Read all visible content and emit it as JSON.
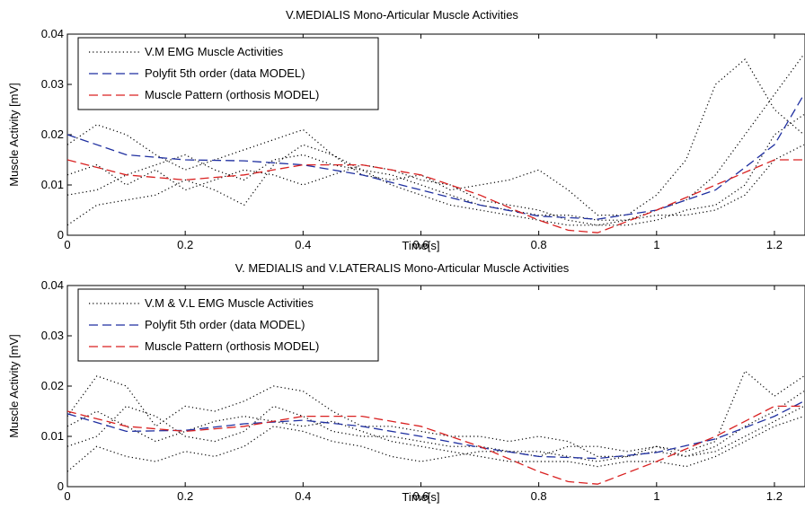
{
  "chart_data": [
    {
      "type": "line",
      "title": "V.MEDIALIS Mono-Articular Muscle Activities",
      "xlabel": "Time[s]",
      "ylabel": "Muscle Activity [mV]",
      "xlim": [
        0,
        1.25
      ],
      "ylim": [
        0,
        0.04
      ],
      "xticks": [
        "0",
        "0.2",
        "0.4",
        "0.6",
        "0.8",
        "1",
        "1.2"
      ],
      "yticks": [
        "0",
        "0.01",
        "0.02",
        "0.03",
        "0.04"
      ],
      "legend_position": "top-left",
      "legend": [
        "V.M EMG Muscle Activities",
        "Polyfit 5th order (data MODEL)",
        "Muscle Pattern (orthosis MODEL)"
      ],
      "series": [
        {
          "name": "V.M EMG Muscle Activities",
          "color": "#000000",
          "style": "dotted",
          "x": [
            0,
            0.05,
            0.1,
            0.15,
            0.2,
            0.25,
            0.3,
            0.35,
            0.4,
            0.45,
            0.5,
            0.55,
            0.6,
            0.65,
            0.7,
            0.75,
            0.8,
            0.85,
            0.9,
            0.95,
            1.0,
            1.05,
            1.1,
            1.15,
            1.2,
            1.25
          ],
          "y": [
            0.002,
            0.006,
            0.007,
            0.008,
            0.011,
            0.009,
            0.006,
            0.014,
            0.018,
            0.016,
            0.013,
            0.01,
            0.008,
            0.006,
            0.005,
            0.004,
            0.003,
            0.002,
            0.002,
            0.003,
            0.005,
            0.007,
            0.012,
            0.02,
            0.028,
            0.036
          ]
        },
        {
          "name": "V.M EMG Muscle Activities",
          "color": "#000000",
          "style": "dotted",
          "x": [
            0,
            0.05,
            0.1,
            0.15,
            0.2,
            0.25,
            0.3,
            0.35,
            0.4,
            0.45,
            0.5,
            0.55,
            0.6,
            0.65,
            0.7,
            0.75,
            0.8,
            0.85,
            0.9,
            0.95,
            1.0,
            1.05,
            1.1,
            1.15,
            1.2,
            1.25
          ],
          "y": [
            0.018,
            0.022,
            0.02,
            0.016,
            0.013,
            0.015,
            0.017,
            0.019,
            0.021,
            0.016,
            0.012,
            0.011,
            0.012,
            0.009,
            0.01,
            0.011,
            0.013,
            0.009,
            0.004,
            0.004,
            0.008,
            0.015,
            0.03,
            0.035,
            0.025,
            0.02
          ]
        },
        {
          "name": "V.M EMG Muscle Activities",
          "color": "#000000",
          "style": "dotted",
          "x": [
            0,
            0.05,
            0.1,
            0.15,
            0.2,
            0.25,
            0.3,
            0.35,
            0.4,
            0.45,
            0.5,
            0.55,
            0.6,
            0.65,
            0.7,
            0.75,
            0.8,
            0.85,
            0.9,
            0.95,
            1.0,
            1.05,
            1.1,
            1.15,
            1.2,
            1.25
          ],
          "y": [
            0.012,
            0.014,
            0.01,
            0.013,
            0.009,
            0.011,
            0.013,
            0.012,
            0.01,
            0.012,
            0.014,
            0.013,
            0.011,
            0.01,
            0.007,
            0.006,
            0.005,
            0.003,
            0.002,
            0.002,
            0.003,
            0.005,
            0.006,
            0.01,
            0.02,
            0.024
          ]
        },
        {
          "name": "V.M EMG Muscle Activities",
          "color": "#000000",
          "style": "dotted",
          "x": [
            0,
            0.05,
            0.1,
            0.15,
            0.2,
            0.25,
            0.3,
            0.35,
            0.4,
            0.45,
            0.5,
            0.55,
            0.6,
            0.65,
            0.7,
            0.75,
            0.8,
            0.85,
            0.9,
            0.95,
            1.0,
            1.05,
            1.1,
            1.15,
            1.2,
            1.25
          ],
          "y": [
            0.008,
            0.009,
            0.012,
            0.014,
            0.016,
            0.013,
            0.011,
            0.015,
            0.016,
            0.014,
            0.013,
            0.012,
            0.01,
            0.008,
            0.006,
            0.005,
            0.004,
            0.004,
            0.003,
            0.003,
            0.004,
            0.004,
            0.005,
            0.008,
            0.015,
            0.018
          ]
        },
        {
          "name": "Polyfit 5th order (data MODEL)",
          "color": "#1f2fa0",
          "style": "dashed",
          "x": [
            0,
            0.1,
            0.2,
            0.3,
            0.4,
            0.5,
            0.6,
            0.7,
            0.8,
            0.9,
            1.0,
            1.1,
            1.2,
            1.25
          ],
          "y": [
            0.02,
            0.016,
            0.015,
            0.0148,
            0.014,
            0.012,
            0.009,
            0.006,
            0.0038,
            0.0032,
            0.005,
            0.009,
            0.018,
            0.028
          ]
        },
        {
          "name": "Muscle Pattern (orthosis MODEL)",
          "color": "#d92020",
          "style": "dashed",
          "x": [
            0,
            0.1,
            0.2,
            0.3,
            0.4,
            0.5,
            0.6,
            0.7,
            0.8,
            0.85,
            0.9,
            1.0,
            1.1,
            1.2,
            1.25
          ],
          "y": [
            0.015,
            0.012,
            0.011,
            0.012,
            0.014,
            0.014,
            0.012,
            0.008,
            0.003,
            0.001,
            0.0005,
            0.005,
            0.01,
            0.015,
            0.015
          ]
        }
      ]
    },
    {
      "type": "line",
      "title": "V. MEDIALIS and V.LATERALIS Mono-Articular Muscle Activities",
      "xlabel": "Time[s]",
      "ylabel": "Muscle Activity [mV]",
      "xlim": [
        0,
        1.25
      ],
      "ylim": [
        0,
        0.04
      ],
      "xticks": [
        "0",
        "0.2",
        "0.4",
        "0.6",
        "0.8",
        "1",
        "1.2"
      ],
      "yticks": [
        "0",
        "0.01",
        "0.02",
        "0.03",
        "0.04"
      ],
      "legend_position": "top-left",
      "legend": [
        "V.M & V.L EMG Muscle Activities",
        "Polyfit 5th order (data MODEL)",
        "Muscle Pattern (orthosis MODEL)"
      ],
      "series": [
        {
          "name": "V.M & V.L EMG Muscle Activities",
          "color": "#000000",
          "style": "dotted",
          "x": [
            0,
            0.05,
            0.1,
            0.15,
            0.2,
            0.25,
            0.3,
            0.35,
            0.4,
            0.45,
            0.5,
            0.55,
            0.6,
            0.65,
            0.7,
            0.75,
            0.8,
            0.85,
            0.9,
            0.95,
            1.0,
            1.05,
            1.1,
            1.15,
            1.2,
            1.25
          ],
          "y": [
            0.003,
            0.008,
            0.006,
            0.005,
            0.007,
            0.006,
            0.008,
            0.012,
            0.011,
            0.009,
            0.008,
            0.006,
            0.005,
            0.006,
            0.007,
            0.007,
            0.006,
            0.008,
            0.008,
            0.007,
            0.008,
            0.006,
            0.007,
            0.01,
            0.013,
            0.016
          ]
        },
        {
          "name": "V.M & V.L EMG Muscle Activities",
          "color": "#000000",
          "style": "dotted",
          "x": [
            0,
            0.05,
            0.1,
            0.15,
            0.2,
            0.25,
            0.3,
            0.35,
            0.4,
            0.45,
            0.5,
            0.55,
            0.6,
            0.65,
            0.7,
            0.75,
            0.8,
            0.85,
            0.9,
            0.95,
            1.0,
            1.05,
            1.1,
            1.15,
            1.2,
            1.25
          ],
          "y": [
            0.014,
            0.022,
            0.02,
            0.012,
            0.016,
            0.015,
            0.017,
            0.02,
            0.019,
            0.015,
            0.012,
            0.012,
            0.011,
            0.01,
            0.01,
            0.009,
            0.01,
            0.009,
            0.006,
            0.006,
            0.008,
            0.007,
            0.009,
            0.023,
            0.018,
            0.022
          ]
        },
        {
          "name": "V.M & V.L EMG Muscle Activities",
          "color": "#000000",
          "style": "dotted",
          "x": [
            0,
            0.05,
            0.1,
            0.15,
            0.2,
            0.25,
            0.3,
            0.35,
            0.4,
            0.45,
            0.5,
            0.55,
            0.6,
            0.65,
            0.7,
            0.75,
            0.8,
            0.85,
            0.9,
            0.95,
            1.0,
            1.05,
            1.1,
            1.15,
            1.2,
            1.25
          ],
          "y": [
            0.012,
            0.015,
            0.012,
            0.009,
            0.011,
            0.013,
            0.014,
            0.013,
            0.012,
            0.013,
            0.011,
            0.009,
            0.008,
            0.007,
            0.006,
            0.005,
            0.005,
            0.005,
            0.004,
            0.005,
            0.005,
            0.004,
            0.006,
            0.009,
            0.012,
            0.014
          ]
        },
        {
          "name": "V.M & V.L EMG Muscle Activities",
          "color": "#000000",
          "style": "dotted",
          "x": [
            0,
            0.05,
            0.1,
            0.15,
            0.2,
            0.25,
            0.3,
            0.35,
            0.4,
            0.45,
            0.5,
            0.55,
            0.6,
            0.65,
            0.7,
            0.75,
            0.8,
            0.85,
            0.9,
            0.95,
            1.0,
            1.05,
            1.1,
            1.15,
            1.2,
            1.25
          ],
          "y": [
            0.008,
            0.01,
            0.016,
            0.014,
            0.01,
            0.009,
            0.011,
            0.016,
            0.014,
            0.011,
            0.01,
            0.01,
            0.009,
            0.008,
            0.008,
            0.007,
            0.007,
            0.006,
            0.005,
            0.006,
            0.007,
            0.006,
            0.008,
            0.012,
            0.015,
            0.019
          ]
        },
        {
          "name": "Polyfit 5th order (data MODEL)",
          "color": "#1f2fa0",
          "style": "dashed",
          "x": [
            0,
            0.1,
            0.2,
            0.3,
            0.4,
            0.5,
            0.6,
            0.7,
            0.8,
            0.9,
            1.0,
            1.1,
            1.2,
            1.25
          ],
          "y": [
            0.0145,
            0.011,
            0.0112,
            0.0125,
            0.0132,
            0.012,
            0.01,
            0.0078,
            0.006,
            0.0056,
            0.0068,
            0.0095,
            0.014,
            0.017
          ]
        },
        {
          "name": "Muscle Pattern (orthosis MODEL)",
          "color": "#d92020",
          "style": "dashed",
          "x": [
            0,
            0.1,
            0.2,
            0.3,
            0.4,
            0.5,
            0.6,
            0.7,
            0.8,
            0.85,
            0.9,
            1.0,
            1.1,
            1.2,
            1.25
          ],
          "y": [
            0.015,
            0.012,
            0.011,
            0.012,
            0.014,
            0.014,
            0.012,
            0.008,
            0.003,
            0.001,
            0.0005,
            0.005,
            0.01,
            0.016,
            0.016
          ]
        }
      ]
    }
  ]
}
